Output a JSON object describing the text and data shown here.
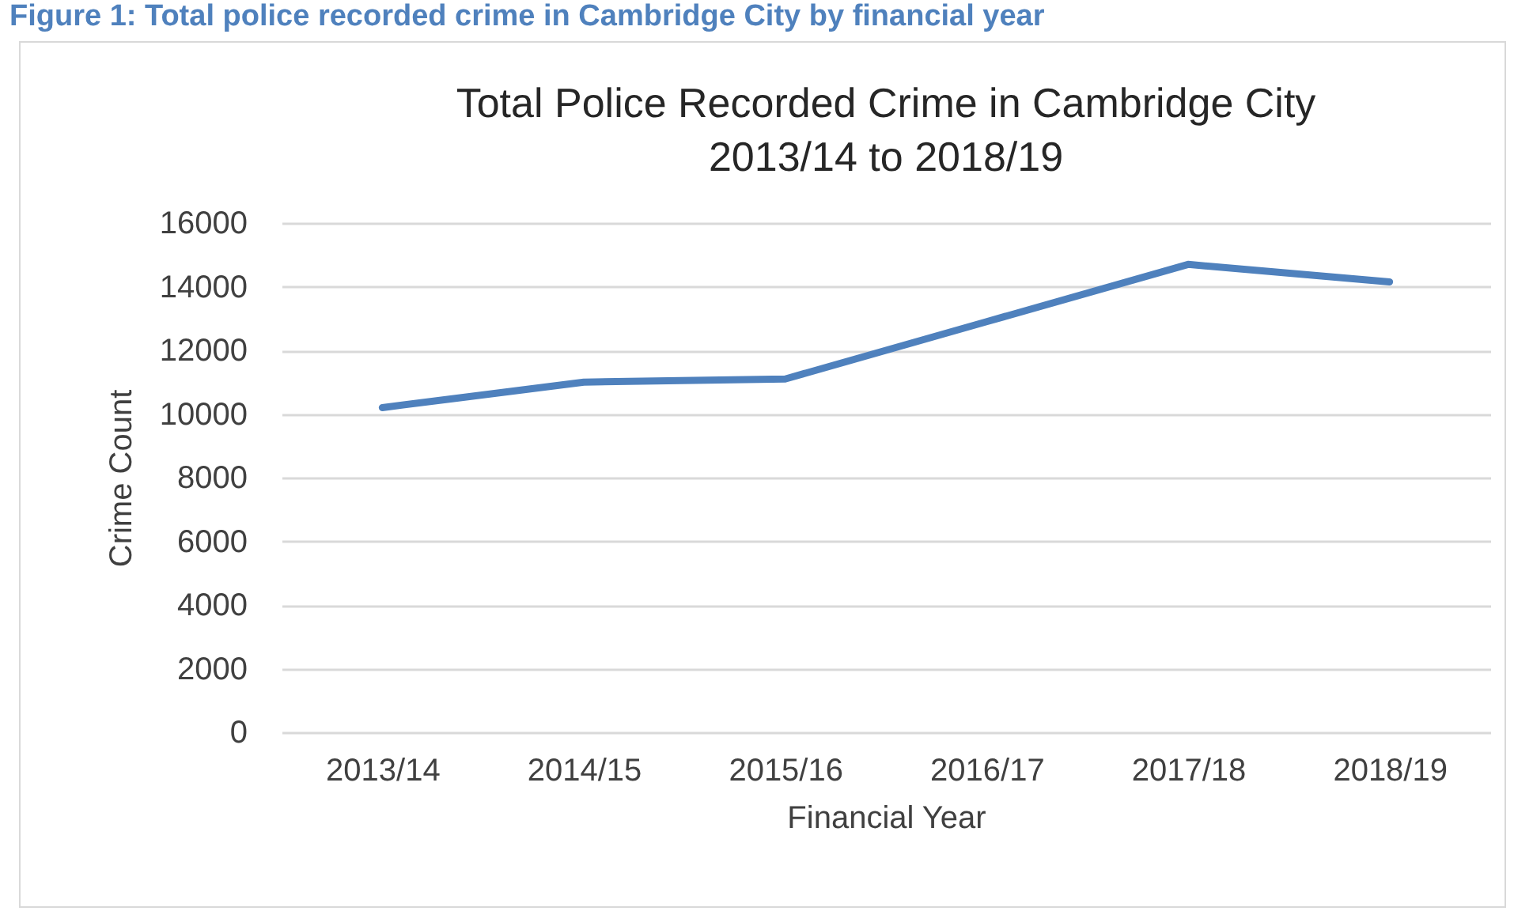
{
  "chart_data": {
    "type": "line",
    "title": "Total  Police Recorded Crime in Cambridge City\n2013/14 to 2018/19",
    "xlabel": "Financial Year",
    "ylabel": "Crime Count",
    "annotations": [
      "Figure 1: Total police recorded crime in Cambridge City by financial year"
    ],
    "categories": [
      "2013/14",
      "2014/15",
      "2015/16",
      "2016/17",
      "2017/18",
      "2018/19"
    ],
    "series": [
      {
        "color": "#4f81bd",
        "values": [
          10200,
          11000,
          11100,
          12900,
          14700,
          14150
        ]
      }
    ],
    "ylim": [
      0,
      16000
    ],
    "yticks": [
      0,
      2000,
      4000,
      6000,
      8000,
      10000,
      12000,
      14000,
      16000
    ],
    "grid": "y"
  }
}
